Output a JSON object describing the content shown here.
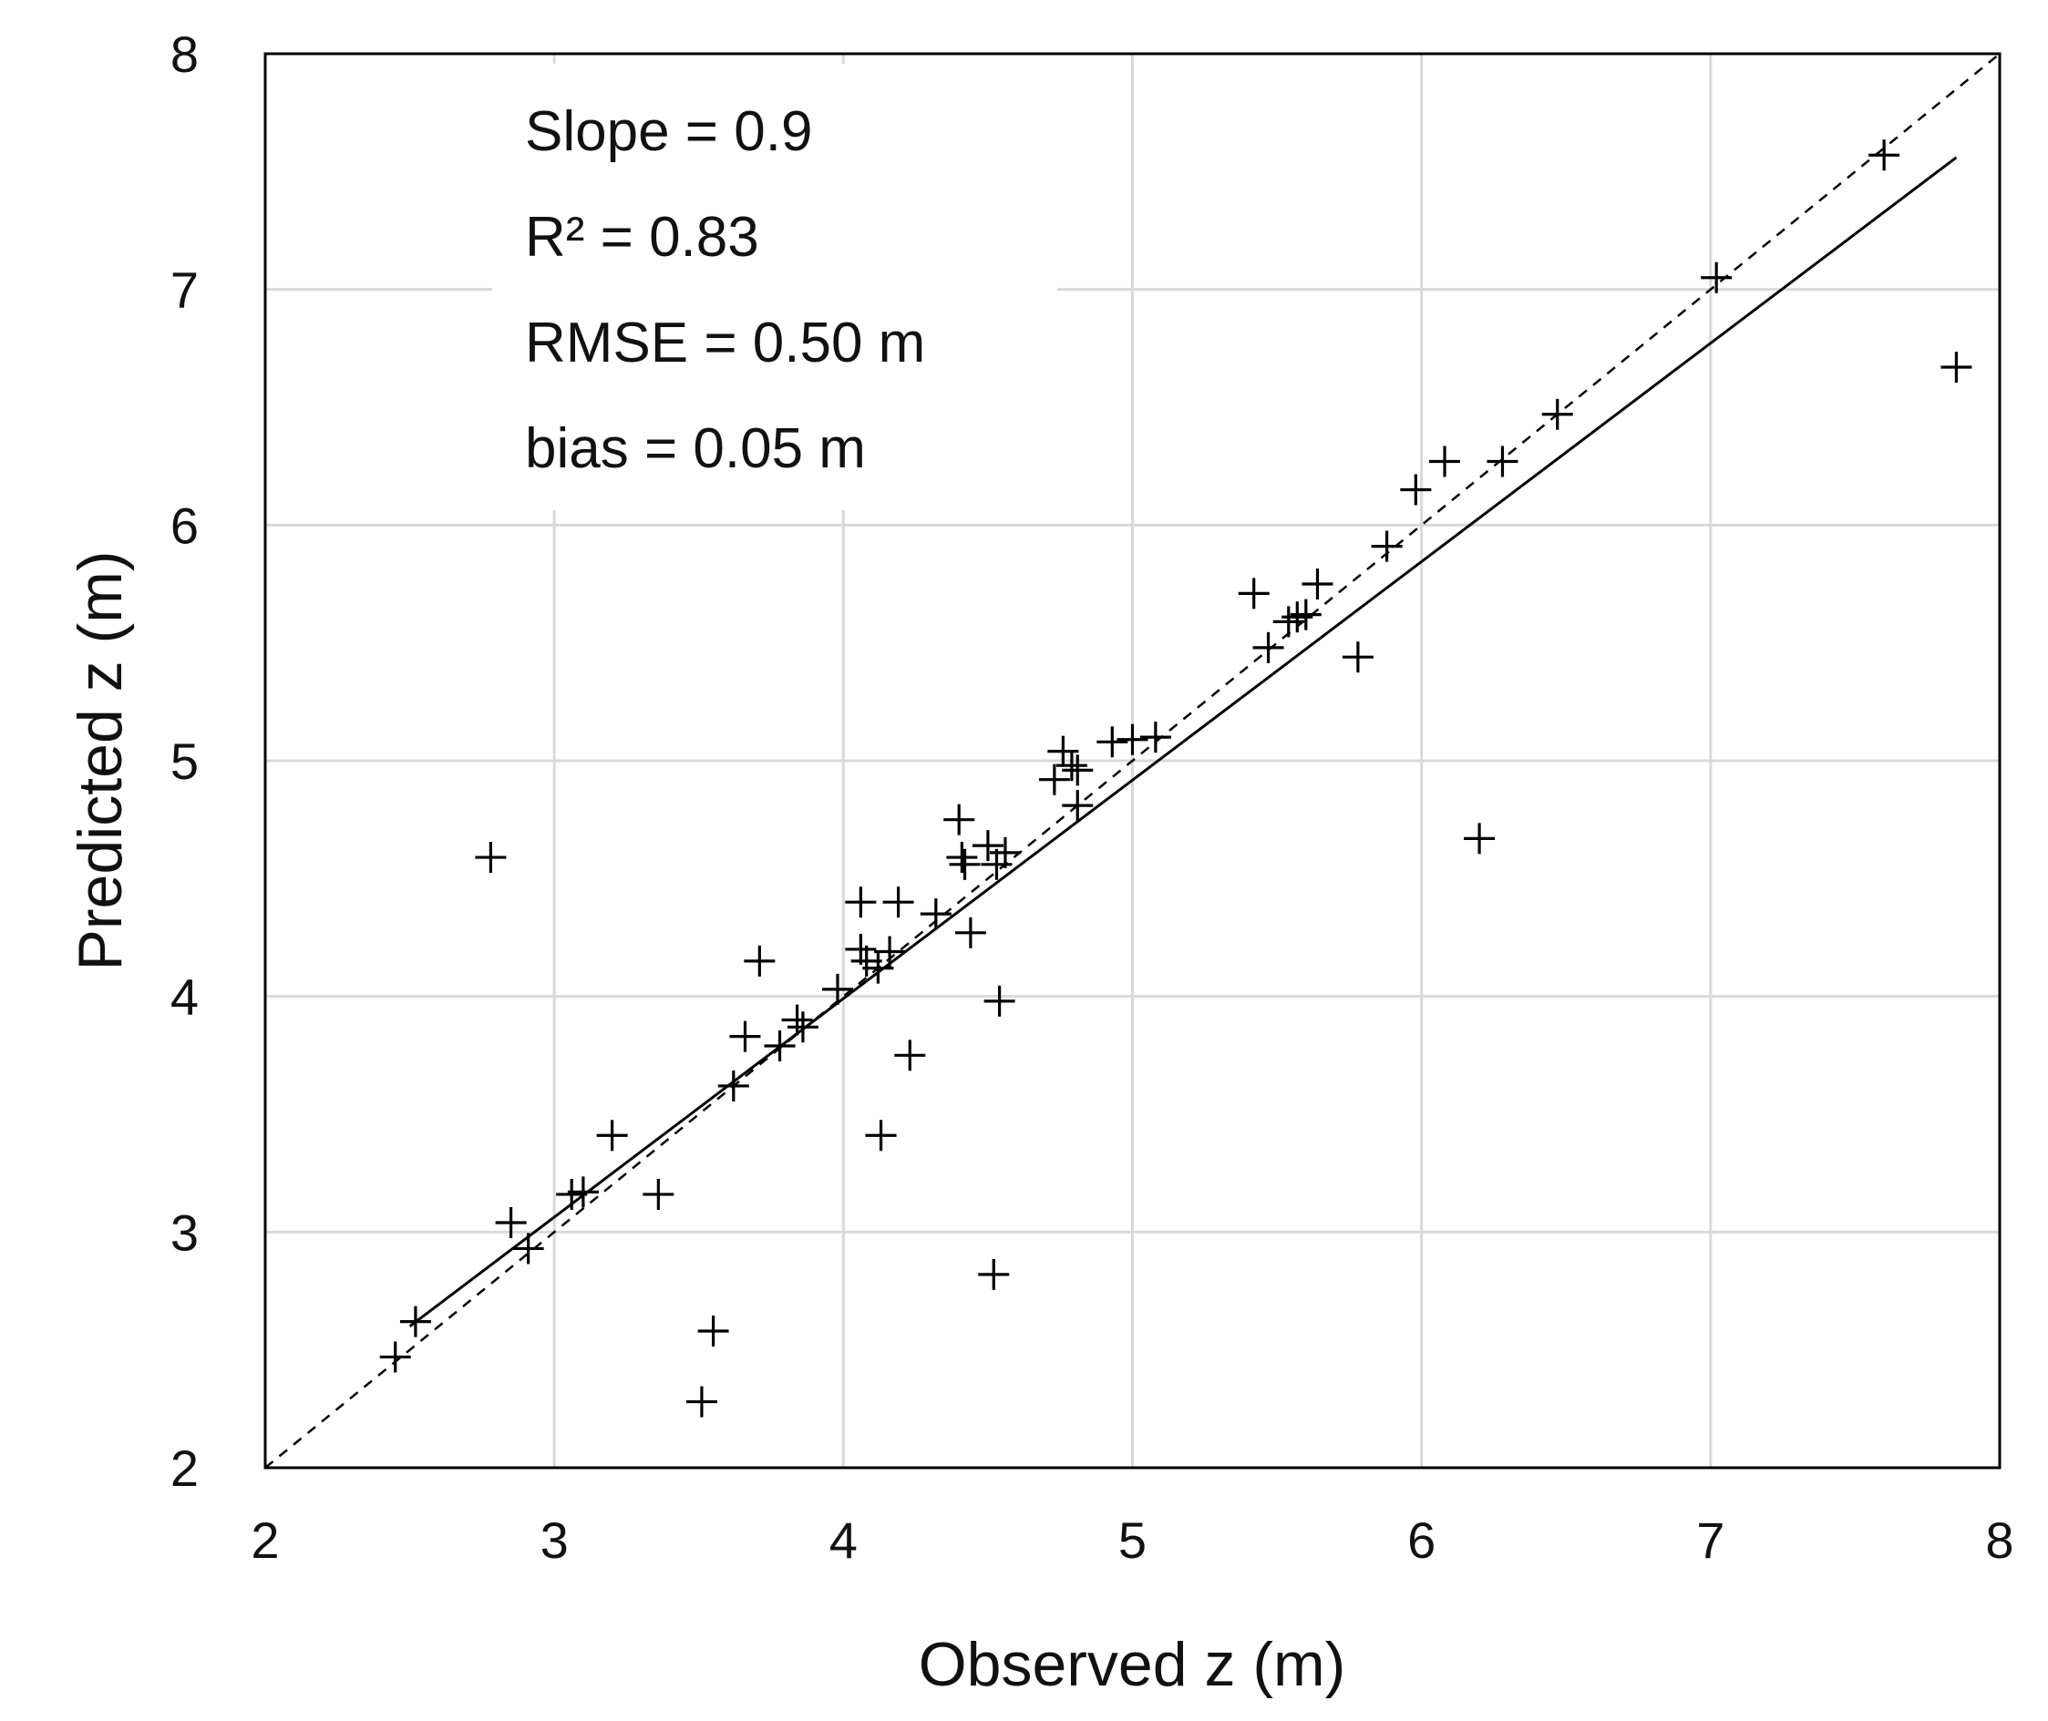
{
  "chart_data": {
    "type": "scatter",
    "xlabel": "Observed z (m)",
    "ylabel": "Predicted z (m)",
    "xlim": [
      2,
      8
    ],
    "ylim": [
      2,
      8
    ],
    "xticks": [
      "2",
      "3",
      "4",
      "5",
      "6",
      "7",
      "8"
    ],
    "yticks": [
      "2",
      "3",
      "4",
      "5",
      "6",
      "7",
      "8"
    ],
    "grid": true,
    "stats": {
      "slope": "Slope = 0.9",
      "r2": "R² = 0.83",
      "rmse": "RMSE = 0.50 m",
      "bias": "bias = 0.05 m"
    },
    "reference_line": {
      "name": "1:1 line",
      "style": "dashed",
      "x": [
        2,
        8
      ],
      "y": [
        2,
        8
      ]
    },
    "fit_line": {
      "name": "regression",
      "style": "solid",
      "slope": 0.9,
      "x": [
        2.5,
        7.85
      ],
      "y": [
        2.6,
        7.56
      ]
    },
    "points": [
      {
        "x": 2.45,
        "y": 2.47
      },
      {
        "x": 2.52,
        "y": 2.62
      },
      {
        "x": 2.78,
        "y": 4.59
      },
      {
        "x": 2.85,
        "y": 3.04
      },
      {
        "x": 2.91,
        "y": 2.93
      },
      {
        "x": 3.06,
        "y": 3.16
      },
      {
        "x": 3.1,
        "y": 3.17
      },
      {
        "x": 3.2,
        "y": 3.41
      },
      {
        "x": 3.36,
        "y": 3.16
      },
      {
        "x": 3.51,
        "y": 2.28
      },
      {
        "x": 3.55,
        "y": 2.58
      },
      {
        "x": 3.62,
        "y": 3.62
      },
      {
        "x": 3.66,
        "y": 3.83
      },
      {
        "x": 3.71,
        "y": 4.15
      },
      {
        "x": 3.78,
        "y": 3.79
      },
      {
        "x": 3.84,
        "y": 3.9
      },
      {
        "x": 3.86,
        "y": 3.87
      },
      {
        "x": 3.98,
        "y": 4.03
      },
      {
        "x": 4.06,
        "y": 4.2
      },
      {
        "x": 4.06,
        "y": 4.4
      },
      {
        "x": 4.08,
        "y": 4.15
      },
      {
        "x": 4.12,
        "y": 4.12
      },
      {
        "x": 4.13,
        "y": 3.41
      },
      {
        "x": 4.16,
        "y": 4.19
      },
      {
        "x": 4.19,
        "y": 4.4
      },
      {
        "x": 4.23,
        "y": 3.75
      },
      {
        "x": 4.32,
        "y": 4.35
      },
      {
        "x": 4.4,
        "y": 4.75
      },
      {
        "x": 4.41,
        "y": 4.59
      },
      {
        "x": 4.42,
        "y": 4.56
      },
      {
        "x": 4.44,
        "y": 4.27
      },
      {
        "x": 4.5,
        "y": 4.64
      },
      {
        "x": 4.52,
        "y": 2.82
      },
      {
        "x": 4.53,
        "y": 4.56
      },
      {
        "x": 4.54,
        "y": 3.98
      },
      {
        "x": 4.56,
        "y": 4.61
      },
      {
        "x": 4.73,
        "y": 4.92
      },
      {
        "x": 4.76,
        "y": 5.04
      },
      {
        "x": 4.79,
        "y": 4.98
      },
      {
        "x": 4.81,
        "y": 4.96
      },
      {
        "x": 4.81,
        "y": 4.81
      },
      {
        "x": 4.93,
        "y": 5.08
      },
      {
        "x": 5.0,
        "y": 5.09
      },
      {
        "x": 5.08,
        "y": 5.1
      },
      {
        "x": 5.42,
        "y": 5.71
      },
      {
        "x": 5.47,
        "y": 5.48
      },
      {
        "x": 5.54,
        "y": 5.59
      },
      {
        "x": 5.57,
        "y": 5.61
      },
      {
        "x": 5.6,
        "y": 5.62
      },
      {
        "x": 5.64,
        "y": 5.75
      },
      {
        "x": 5.78,
        "y": 5.44
      },
      {
        "x": 5.88,
        "y": 5.91
      },
      {
        "x": 5.98,
        "y": 6.15
      },
      {
        "x": 6.08,
        "y": 6.27
      },
      {
        "x": 6.2,
        "y": 4.67
      },
      {
        "x": 6.28,
        "y": 6.27
      },
      {
        "x": 6.47,
        "y": 6.47
      },
      {
        "x": 7.02,
        "y": 7.05
      },
      {
        "x": 7.6,
        "y": 7.57
      },
      {
        "x": 7.85,
        "y": 6.67
      }
    ]
  }
}
